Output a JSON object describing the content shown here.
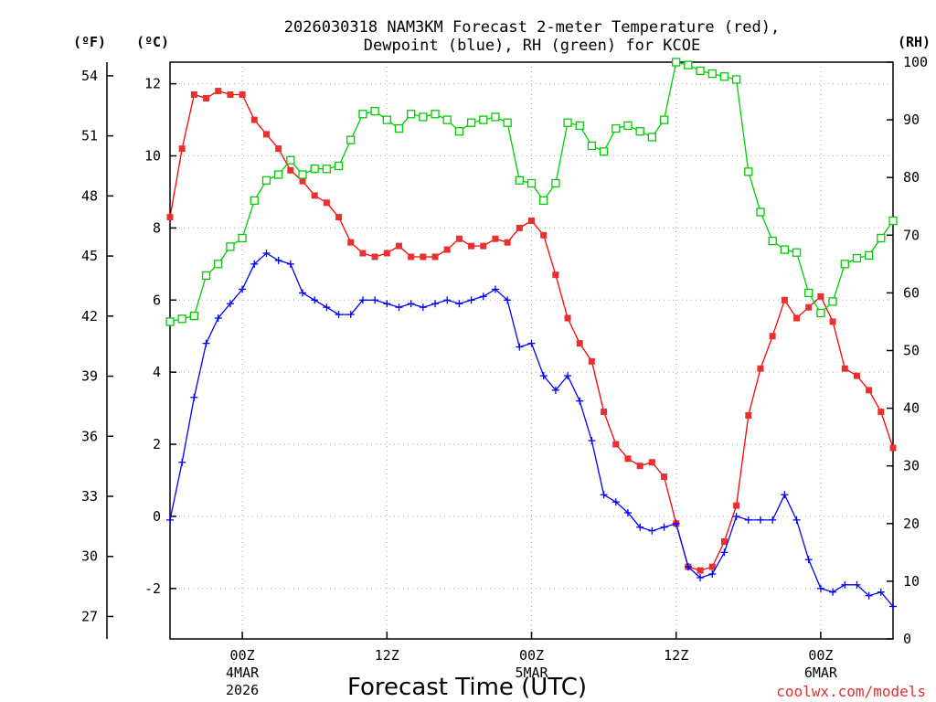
{
  "chart_data": {
    "type": "line",
    "title_line1": "2026030318 NAM3KM Forecast 2-meter Temperature (red),",
    "title_line2": "Dewpoint (blue), RH (green) for KCOE",
    "unit_f": "(ºF)",
    "unit_c": "(ºC)",
    "unit_rh": "(RH)",
    "xlabel": "Forecast Time (UTC)",
    "credit": "coolwx.com/models",
    "colors": {
      "temperature": "#ff0000",
      "dewpoint": "#0000ff",
      "rh": "#00cc00",
      "grid": "#aaaaaa"
    },
    "x_range_hours": [
      0,
      60
    ],
    "y_left_c_range": [
      -3.4,
      12.6
    ],
    "y_left_f_range": [
      25.88,
      54.68
    ],
    "y_right_rh_range": [
      0,
      100
    ],
    "c_ticks": [
      "-2",
      "0",
      "2",
      "4",
      "6",
      "8",
      "10",
      "12"
    ],
    "f_ticks": [
      "27",
      "30",
      "33",
      "36",
      "39",
      "42",
      "45",
      "48",
      "51",
      "54"
    ],
    "rh_ticks": [
      "0",
      "10",
      "20",
      "30",
      "40",
      "50",
      "60",
      "70",
      "80",
      "90",
      "100"
    ],
    "x_ticks": [
      {
        "hour": 6,
        "label": "00Z",
        "sub1": "4MAR",
        "sub2": "2026"
      },
      {
        "hour": 18,
        "label": "12Z",
        "sub1": "",
        "sub2": ""
      },
      {
        "hour": 30,
        "label": "00Z",
        "sub1": "5MAR",
        "sub2": ""
      },
      {
        "hour": 42,
        "label": "12Z",
        "sub1": "",
        "sub2": ""
      },
      {
        "hour": 54,
        "label": "00Z",
        "sub1": "6MAR",
        "sub2": ""
      }
    ],
    "series": [
      {
        "name": "Temperature (°C)",
        "axis": "c",
        "values": [
          8.3,
          10.2,
          11.7,
          11.6,
          11.8,
          11.7,
          11.7,
          11.0,
          10.6,
          10.2,
          9.6,
          9.3,
          8.9,
          8.7,
          8.3,
          7.6,
          7.3,
          7.2,
          7.3,
          7.5,
          7.2,
          7.2,
          7.2,
          7.4,
          7.7,
          7.5,
          7.5,
          7.7,
          7.6,
          8.0,
          8.2,
          7.8,
          6.7,
          5.5,
          4.8,
          4.3,
          2.9,
          2.0,
          1.6,
          1.4,
          1.5,
          1.1,
          -0.2,
          -1.4,
          -1.5,
          -1.4,
          -0.7,
          0.3,
          2.8,
          4.1,
          5.0,
          6.0,
          5.5,
          5.8,
          6.1,
          5.4,
          4.1,
          3.9,
          3.5,
          2.9,
          1.9
        ]
      },
      {
        "name": "Dewpoint (°C)",
        "axis": "c",
        "values": [
          -0.1,
          1.5,
          3.3,
          4.8,
          5.5,
          5.9,
          6.3,
          7.0,
          7.3,
          7.1,
          7.0,
          6.2,
          6.0,
          5.8,
          5.6,
          5.6,
          6.0,
          6.0,
          5.9,
          5.8,
          5.9,
          5.8,
          5.9,
          6.0,
          5.9,
          6.0,
          6.1,
          6.3,
          6.0,
          4.7,
          4.8,
          3.9,
          3.5,
          3.9,
          3.2,
          2.1,
          0.6,
          0.4,
          0.1,
          -0.3,
          -0.4,
          -0.3,
          -0.2,
          -1.4,
          -1.7,
          -1.6,
          -1.0,
          0.0,
          -0.1,
          -0.1,
          -0.1,
          0.6,
          -0.1,
          -1.2,
          -2.0,
          -2.1,
          -1.9,
          -1.9,
          -2.2,
          -2.1,
          -2.5
        ]
      },
      {
        "name": "RH (%)",
        "axis": "rh",
        "values": [
          55,
          55.5,
          56,
          63,
          65,
          68,
          69.5,
          76,
          79.5,
          80.5,
          83,
          80.5,
          81.5,
          81.5,
          82,
          86.5,
          91,
          91.5,
          90,
          88.5,
          91,
          90.5,
          91,
          90,
          88,
          89.5,
          90,
          90.5,
          89.5,
          79.5,
          79,
          76,
          79,
          89.5,
          89,
          85.5,
          84.5,
          88.5,
          89,
          88,
          87,
          90,
          100,
          99.5,
          98.5,
          98,
          97.5,
          97,
          81,
          74,
          69,
          67.5,
          67,
          60,
          56.5,
          58.5,
          65,
          66,
          66.5,
          69.5,
          72.5
        ]
      }
    ]
  }
}
